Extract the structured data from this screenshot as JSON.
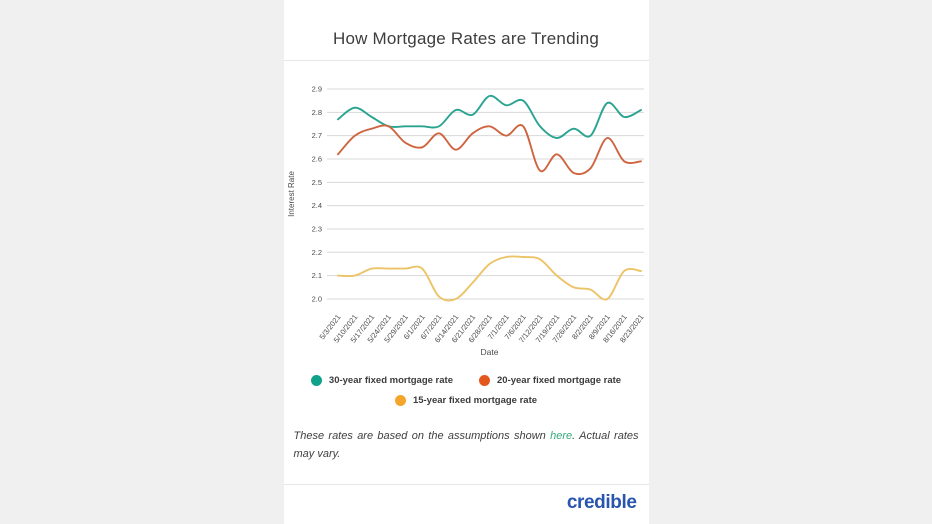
{
  "page": {
    "background_color": "#f0f0f1",
    "card_background_color": "#ffffff"
  },
  "header": {
    "title": "How Mortgage Rates are Trending"
  },
  "chart_data": {
    "type": "line",
    "title": "How Mortgage Rates are Trending",
    "xlabel": "Date",
    "ylabel": "Interest Rate",
    "x": [
      "5/3/2021",
      "5/10/2021",
      "5/17/2021",
      "5/24/2021",
      "5/29/2021",
      "6/1/2021",
      "6/7/2021",
      "6/14/2021",
      "6/21/2021",
      "6/28/2021",
      "7/1/2021",
      "7/6/2021",
      "7/12/2021",
      "7/19/2021",
      "7/26/2021",
      "8/2/2021",
      "8/9/2021",
      "8/16/2021",
      "8/23/2021"
    ],
    "yticks": [
      2.0,
      2.1,
      2.2,
      2.3,
      2.4,
      2.5,
      2.6,
      2.7,
      2.8,
      2.9
    ],
    "ylim": [
      2.0,
      2.9
    ],
    "grid": true,
    "legend_position": "bottom",
    "grid_color": "#d8d8d8",
    "axis_text_color": "#4c4c4c",
    "series": [
      {
        "name": "30-year fixed mortgage rate",
        "line_color": "#2aa491",
        "dot_color": "#0ea28a",
        "values": [
          2.77,
          2.82,
          2.78,
          2.74,
          2.74,
          2.74,
          2.74,
          2.81,
          2.79,
          2.87,
          2.83,
          2.85,
          2.74,
          2.69,
          2.73,
          2.7,
          2.84,
          2.78,
          2.81
        ]
      },
      {
        "name": "20-year fixed mortgage rate",
        "line_color": "#cf6540",
        "dot_color": "#e4571c",
        "values": [
          2.62,
          2.7,
          2.73,
          2.74,
          2.67,
          2.65,
          2.71,
          2.64,
          2.71,
          2.74,
          2.7,
          2.74,
          2.55,
          2.62,
          2.54,
          2.56,
          2.69,
          2.59,
          2.59
        ]
      },
      {
        "name": "15-year fixed mortgage rate",
        "line_color": "#ecc366",
        "dot_color": "#f6a52c",
        "values": [
          2.1,
          2.1,
          2.13,
          2.13,
          2.13,
          2.13,
          2.01,
          2.0,
          2.07,
          2.15,
          2.18,
          2.18,
          2.17,
          2.1,
          2.05,
          2.04,
          2.0,
          2.12,
          2.12
        ]
      }
    ]
  },
  "footnote": {
    "text_before": "These rates are based on the assumptions shown ",
    "link_text": "here",
    "text_after": ". Actual rates may vary.",
    "link_color": "#35a97c"
  },
  "footer": {
    "logo_text": "credible",
    "logo_color": "#2a55ae"
  }
}
